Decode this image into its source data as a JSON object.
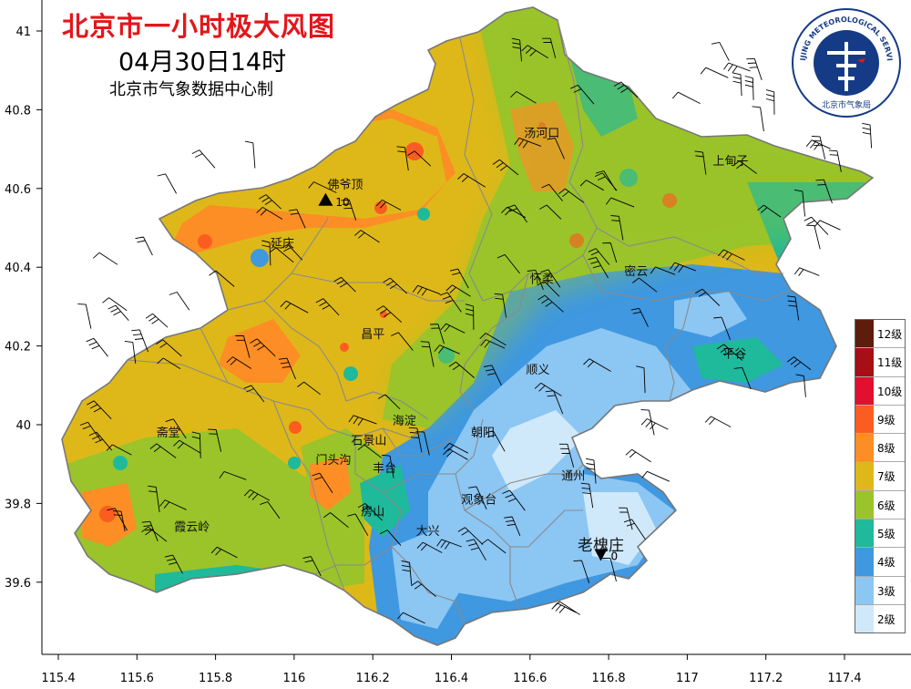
{
  "header": {
    "title": "北京市一小时极大风图",
    "time": "04月30日14时",
    "credit": "北京市气象数据中心制"
  },
  "logo": {
    "text_en": "BEIJING METEOROLOGICAL SERVICE",
    "text_cn": "北京市气象局",
    "ring_color": "#153b86"
  },
  "axes": {
    "x_ticks": [
      115.4,
      115.6,
      115.8,
      116,
      116.2,
      116.4,
      116.6,
      116.8,
      117,
      117.2,
      117.4
    ],
    "x_tick_labels": [
      "115.4",
      "115.6",
      "115.8",
      "116",
      "116.2",
      "116.4",
      "116.6",
      "116.8",
      "117",
      "117.2",
      "117.4"
    ],
    "y_ticks": [
      41,
      40.8,
      40.6,
      40.4,
      40.2,
      40,
      39.8,
      39.6
    ],
    "y_tick_labels": [
      "41",
      "40.8",
      "40.6",
      "40.4",
      "40.2",
      "40",
      "39.8",
      "39.6"
    ],
    "lon_range": [
      115.3,
      117.6
    ],
    "lat_range": [
      39.4,
      41.08
    ]
  },
  "legend": {
    "items": [
      {
        "label": "12级",
        "color": "#5e1d0c"
      },
      {
        "label": "11级",
        "color": "#a50f15"
      },
      {
        "label": "10级",
        "color": "#e0102e"
      },
      {
        "label": "9级",
        "color": "#fb5d20"
      },
      {
        "label": "8级",
        "color": "#fd8d25"
      },
      {
        "label": "7级",
        "color": "#deb819"
      },
      {
        "label": "6级",
        "color": "#9ac42a"
      },
      {
        "label": "5级",
        "color": "#1fb99b"
      },
      {
        "label": "4级",
        "color": "#3f98e0"
      },
      {
        "label": "3级",
        "color": "#8cc6f3"
      },
      {
        "label": "2级",
        "color": "#cfe9fb"
      }
    ]
  },
  "stations": [
    {
      "name": "汤河口",
      "lon": 116.63,
      "lat": 40.73
    },
    {
      "name": "上甸子",
      "lon": 117.11,
      "lat": 40.66
    },
    {
      "name": "佛爷顶",
      "lon": 116.13,
      "lat": 40.6
    },
    {
      "name": "延庆",
      "lon": 115.97,
      "lat": 40.45
    },
    {
      "name": "怀柔",
      "lon": 116.63,
      "lat": 40.36
    },
    {
      "name": "密云",
      "lon": 116.87,
      "lat": 40.38
    },
    {
      "name": "昌平",
      "lon": 116.2,
      "lat": 40.22
    },
    {
      "name": "平谷",
      "lon": 117.12,
      "lat": 40.17
    },
    {
      "name": "顺义",
      "lon": 116.62,
      "lat": 40.13
    },
    {
      "name": "海淀",
      "lon": 116.28,
      "lat": 40.0
    },
    {
      "name": "朝阳",
      "lon": 116.48,
      "lat": 39.97
    },
    {
      "name": "石景山",
      "lon": 116.19,
      "lat": 39.95
    },
    {
      "name": "门头沟",
      "lon": 116.1,
      "lat": 39.9
    },
    {
      "name": "丰台",
      "lon": 116.23,
      "lat": 39.88
    },
    {
      "name": "通州",
      "lon": 116.71,
      "lat": 39.86
    },
    {
      "name": "观象台",
      "lon": 116.47,
      "lat": 39.8
    },
    {
      "name": "霞云岭",
      "lon": 115.74,
      "lat": 39.73
    },
    {
      "name": "房山",
      "lon": 116.2,
      "lat": 39.77
    },
    {
      "name": "大兴",
      "lon": 116.34,
      "lat": 39.72
    },
    {
      "name": "斋堂",
      "lon": 115.68,
      "lat": 39.97
    }
  ],
  "highlight_station": {
    "name": "老槐庄",
    "lon": 116.78,
    "lat": 39.68
  },
  "markers": [
    {
      "kind": "max",
      "lon": 116.08,
      "lat": 40.57,
      "label": "10"
    },
    {
      "kind": "min",
      "lon": 116.78,
      "lat": 39.67,
      "label": "0"
    }
  ]
}
